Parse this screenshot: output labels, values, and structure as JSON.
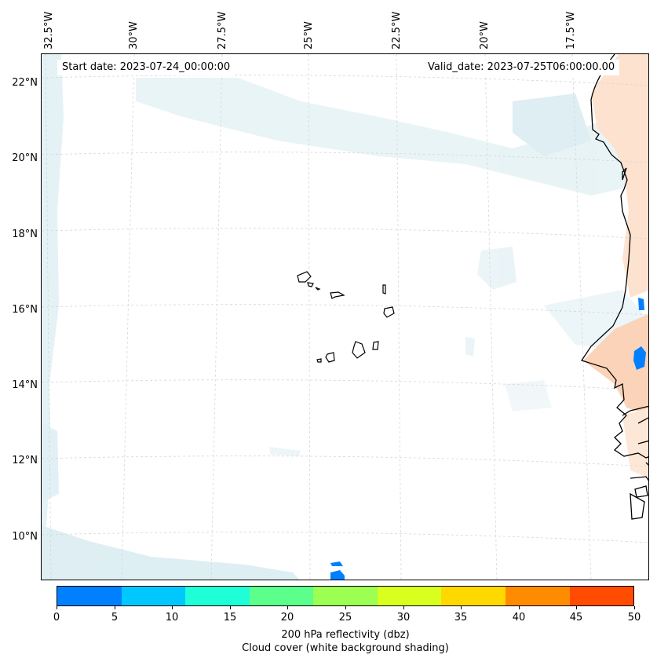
{
  "map": {
    "start_date": "Start date: 2023-07-24_00:00:00",
    "valid_date": "Valid_date: 2023-07-25T06:00:00.00",
    "lon_labels": [
      "32.5°W",
      "30°W",
      "27.5°W",
      "25°W",
      "22.5°W",
      "20°W",
      "17.5°W"
    ],
    "lat_labels": [
      "22°N",
      "20°N",
      "18°N",
      "16°N",
      "14°N",
      "12°N",
      "10°N"
    ],
    "land_color": "#fde2cf",
    "cloud_color": "#cfe8ef",
    "reflectivity_color": "#0080ff",
    "gridline_color": "#d6d6d6"
  },
  "colorbar": {
    "colors": [
      "#0080ff",
      "#00c8ff",
      "#1effd8",
      "#5cff8c",
      "#9cff52",
      "#d8ff1e",
      "#ffd800",
      "#ff8c00",
      "#ff4c00"
    ],
    "ticks": [
      "0",
      "5",
      "10",
      "15",
      "20",
      "25",
      "30",
      "35",
      "40",
      "45",
      "50"
    ],
    "label": "200 hPa reflectivity (dbz)",
    "sublabel": "Cloud cover (white background shading)"
  }
}
